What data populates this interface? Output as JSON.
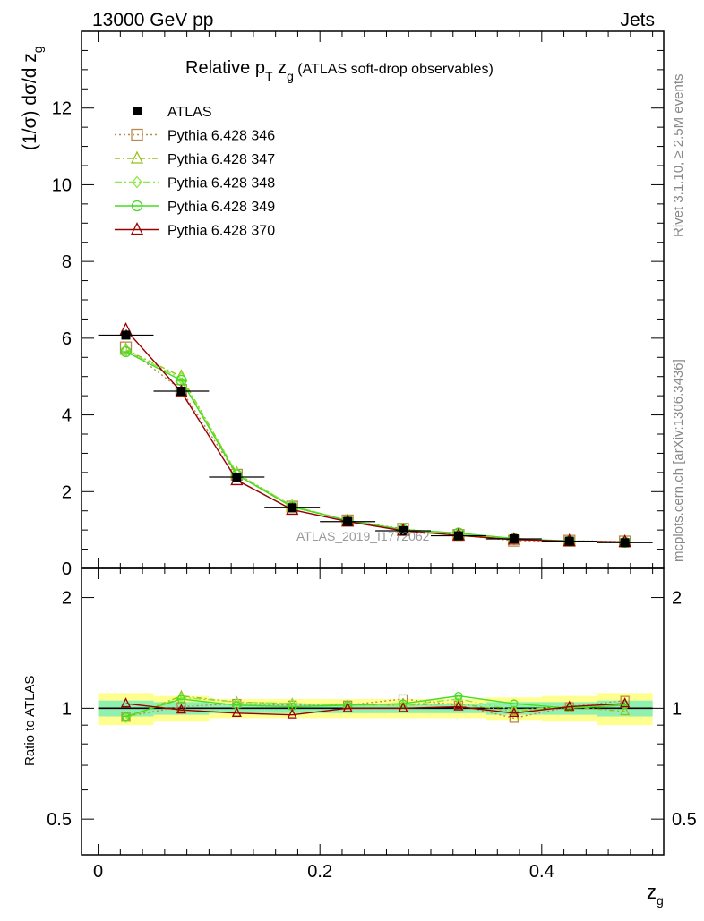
{
  "header": {
    "left": "13000 GeV pp",
    "right": "Jets"
  },
  "side_labels": {
    "rivet": "Rivet 3.1.10, ≥ 2.5M events",
    "mcplots": "mcplots.cern.ch [arXiv:1306.3436]"
  },
  "watermark": "ATLAS_2019_I1772062",
  "main_title": {
    "prefix": "Relative p",
    "sub1": "T",
    "mid": " z",
    "sub2": "g",
    "suffix": " (ATLAS soft-drop observables)"
  },
  "ylabel_top": {
    "main": "(1/σ) dσ/d z",
    "sub": "g"
  },
  "ylabel_bottom": "Ratio to ATLAS",
  "xlabel": {
    "main": "z",
    "sub": "g"
  },
  "legend": [
    {
      "label": "ATLAS"
    },
    {
      "label": "Pythia 6.428 346"
    },
    {
      "label": "Pythia 6.428 347"
    },
    {
      "label": "Pythia 6.428 348"
    },
    {
      "label": "Pythia 6.428 349"
    },
    {
      "label": "Pythia 6.428 370"
    }
  ],
  "colors": {
    "346": "#b8894a",
    "347": "#9bbf1a",
    "348": "#8ee84a",
    "349": "#44dd22",
    "370": "#990000",
    "band_inner": "#90f0b0",
    "band_outer": "#ffff90"
  },
  "chart_data": [
    {
      "type": "line",
      "title": "Relative pT zg (ATLAS soft-drop observables)",
      "xlabel": "zg",
      "ylabel": "(1/σ) dσ/d zg",
      "xlim": [
        -0.015,
        0.51
      ],
      "ylim": [
        0,
        14
      ],
      "xticks": [
        "0",
        "0.2",
        "0.4"
      ],
      "yticks": [
        "0",
        "2",
        "4",
        "6",
        "8",
        "10",
        "12"
      ],
      "x": [
        0.025,
        0.075,
        0.125,
        0.175,
        0.225,
        0.275,
        0.325,
        0.375,
        0.425,
        0.475
      ],
      "series": [
        {
          "name": "ATLAS",
          "key": "data",
          "values": [
            6.08,
            4.62,
            2.38,
            1.58,
            1.22,
            0.98,
            0.85,
            0.77,
            0.71,
            0.67
          ]
        },
        {
          "name": "Pythia 6.428 346",
          "key": "346",
          "values": [
            5.76,
            4.65,
            2.44,
            1.61,
            1.25,
            1.03,
            0.87,
            0.72,
            0.72,
            0.7
          ]
        },
        {
          "name": "Pythia 6.428 347",
          "key": "347",
          "values": [
            5.7,
            5.0,
            2.48,
            1.62,
            1.25,
            1.0,
            0.88,
            0.75,
            0.72,
            0.68
          ]
        },
        {
          "name": "Pythia 6.428 348",
          "key": "348",
          "values": [
            5.68,
            4.95,
            2.47,
            1.63,
            1.25,
            1.0,
            0.9,
            0.76,
            0.72,
            0.69
          ]
        },
        {
          "name": "Pythia 6.428 349",
          "key": "349",
          "values": [
            5.65,
            4.9,
            2.44,
            1.6,
            1.25,
            1.01,
            0.92,
            0.78,
            0.71,
            0.68
          ]
        },
        {
          "name": "Pythia 6.428 370",
          "key": "370",
          "values": [
            6.22,
            4.6,
            2.3,
            1.53,
            1.22,
            0.98,
            0.86,
            0.75,
            0.71,
            0.69
          ]
        }
      ]
    },
    {
      "type": "line",
      "ylabel": "Ratio to ATLAS",
      "xlabel": "zg",
      "xlim": [
        -0.015,
        0.51
      ],
      "ylim": [
        0.4,
        2.4
      ],
      "log_y": true,
      "yticks": [
        "0.5",
        "1",
        "2"
      ],
      "x": [
        0.025,
        0.075,
        0.125,
        0.175,
        0.225,
        0.275,
        0.325,
        0.375,
        0.425,
        0.475
      ],
      "band": {
        "inner": [
          0.05,
          0.04,
          0.03,
          0.03,
          0.03,
          0.03,
          0.03,
          0.04,
          0.04,
          0.05
        ],
        "outer": [
          0.1,
          0.08,
          0.06,
          0.06,
          0.06,
          0.06,
          0.06,
          0.07,
          0.08,
          0.1
        ]
      },
      "series": [
        {
          "name": "Pythia 6.428 346",
          "key": "346",
          "values": [
            0.95,
            1.01,
            1.03,
            1.02,
            1.02,
            1.06,
            1.02,
            0.94,
            1.01,
            1.05
          ]
        },
        {
          "name": "Pythia 6.428 347",
          "key": "347",
          "values": [
            0.94,
            1.08,
            1.04,
            1.03,
            1.02,
            1.02,
            1.03,
            0.98,
            1.01,
            0.98
          ]
        },
        {
          "name": "Pythia 6.428 348",
          "key": "348",
          "values": [
            0.94,
            1.07,
            1.04,
            1.03,
            1.02,
            1.02,
            1.06,
            0.99,
            1.01,
            1.03
          ]
        },
        {
          "name": "Pythia 6.428 349",
          "key": "349",
          "values": [
            0.95,
            1.06,
            1.02,
            1.01,
            1.02,
            1.03,
            1.08,
            1.03,
            1.0,
            1.02
          ]
        },
        {
          "name": "Pythia 6.428 370",
          "key": "370",
          "values": [
            1.03,
            0.99,
            0.97,
            0.96,
            1.0,
            1.0,
            1.01,
            0.97,
            1.01,
            1.03
          ]
        }
      ]
    }
  ]
}
